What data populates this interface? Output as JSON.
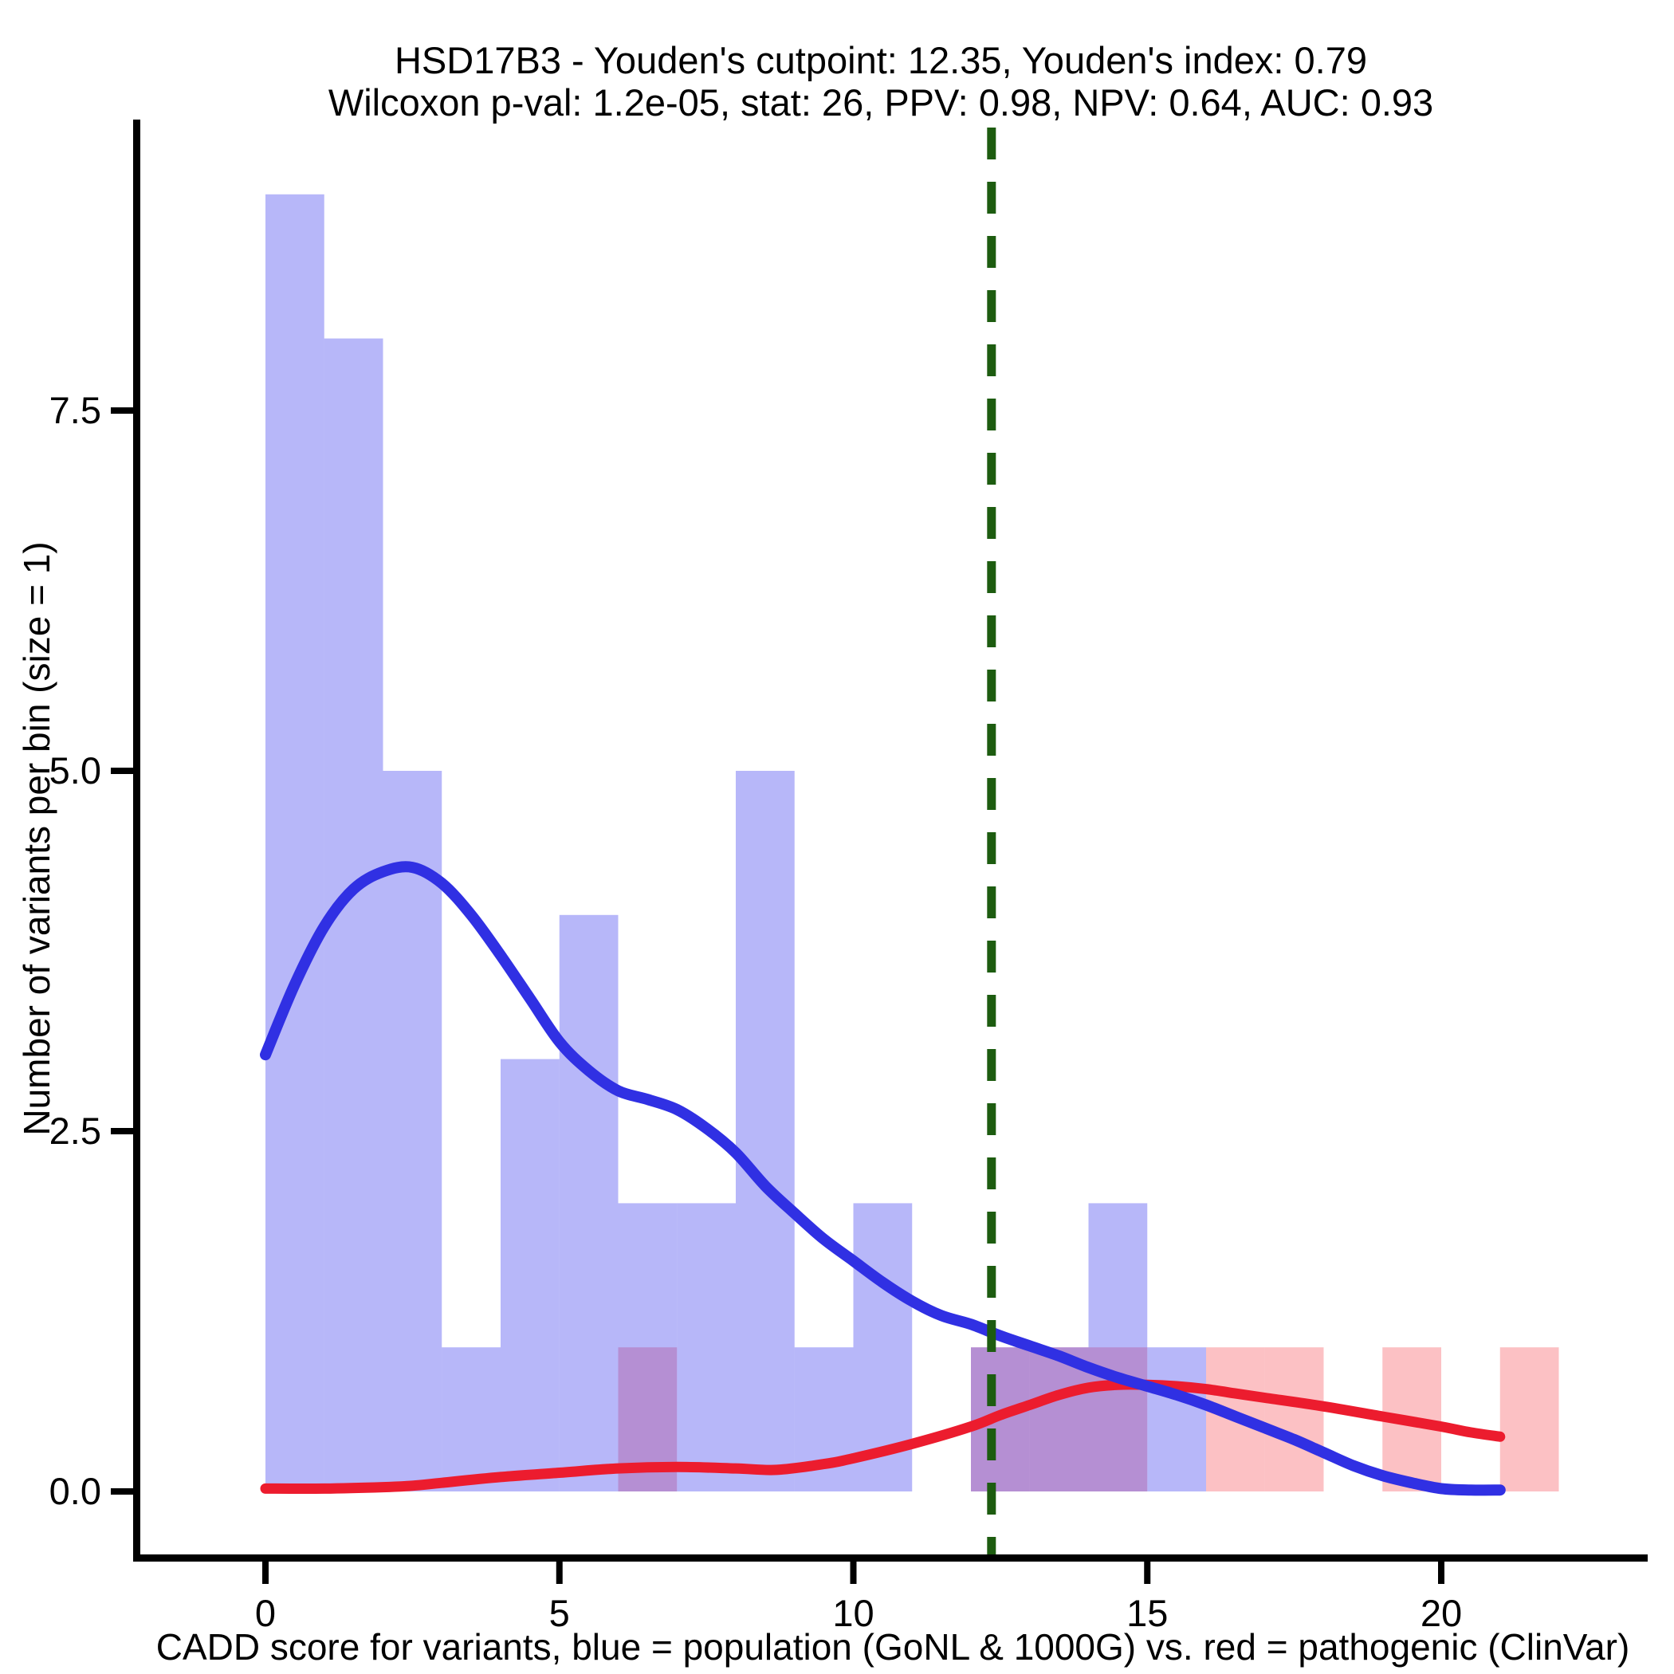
{
  "title": {
    "line1": "HSD17B3 - Youden's cutpoint: 12.35, Youden's index: 0.79",
    "line2": "Wilcoxon p-val: 1.2e-05, stat: 26, PPV: 0.98, NPV: 0.64, AUC: 0.93"
  },
  "chart_data": {
    "type": "bar",
    "subtype": "overlaid-histograms-with-density",
    "title": "HSD17B3 - Youden's cutpoint: 12.35, Youden's index: 0.79",
    "subtitle": "Wilcoxon p-val: 1.2e-05, stat: 26, PPV: 0.98, NPV: 0.64, AUC: 0.93",
    "xlabel": "CADD score for variants, blue = population (GoNL & 1000G) vs. red = pathogenic (ClinVar)",
    "ylabel": "Number of variants per bin (size = 1)",
    "x_ticks": [
      0,
      5,
      10,
      15,
      20
    ],
    "y_ticks": [
      "0.0",
      "2.5",
      "5.0",
      "7.5"
    ],
    "xlim": [
      -2.1,
      23.5
    ],
    "ylim": [
      0,
      9.5
    ],
    "bin_width": 1,
    "grid": false,
    "legend_position": "none",
    "series": [
      {
        "name": "population (GoNL & 1000G)",
        "role": "histogram",
        "color": "#3737ee",
        "fill_opacity": 0.36,
        "bins": [
          [
            0,
            9
          ],
          [
            1,
            8
          ],
          [
            2,
            5
          ],
          [
            3,
            1
          ],
          [
            4,
            3
          ],
          [
            5,
            4
          ],
          [
            6,
            2
          ],
          [
            7,
            2
          ],
          [
            8,
            5
          ],
          [
            9,
            1
          ],
          [
            10,
            2
          ],
          [
            12,
            1
          ],
          [
            13,
            1
          ],
          [
            14,
            2
          ],
          [
            15,
            1
          ]
        ]
      },
      {
        "name": "pathogenic (ClinVar)",
        "role": "histogram",
        "color": "#f4323c",
        "fill_opacity": 0.3,
        "bins": [
          [
            6,
            1
          ],
          [
            12,
            1
          ],
          [
            13,
            1
          ],
          [
            14,
            1
          ],
          [
            16,
            1
          ],
          [
            17,
            1
          ],
          [
            19,
            1
          ],
          [
            21,
            1
          ]
        ]
      },
      {
        "name": "population density",
        "role": "density-line",
        "color": "#3030e3",
        "points": [
          [
            0,
            3.03
          ],
          [
            0.5,
            3.52
          ],
          [
            1,
            3.92
          ],
          [
            1.5,
            4.18
          ],
          [
            2,
            4.3
          ],
          [
            2.5,
            4.33
          ],
          [
            3,
            4.22
          ],
          [
            3.5,
            4.0
          ],
          [
            4,
            3.72
          ],
          [
            4.5,
            3.42
          ],
          [
            5,
            3.12
          ],
          [
            5.5,
            2.92
          ],
          [
            6,
            2.78
          ],
          [
            6.5,
            2.72
          ],
          [
            7,
            2.65
          ],
          [
            7.5,
            2.52
          ],
          [
            8,
            2.35
          ],
          [
            8.5,
            2.12
          ],
          [
            9,
            1.93
          ],
          [
            9.5,
            1.75
          ],
          [
            10,
            1.6
          ],
          [
            10.5,
            1.45
          ],
          [
            11,
            1.32
          ],
          [
            11.5,
            1.22
          ],
          [
            12,
            1.16
          ],
          [
            12.5,
            1.08
          ],
          [
            13,
            1.01
          ],
          [
            13.5,
            0.94
          ],
          [
            14,
            0.86
          ],
          [
            14.5,
            0.79
          ],
          [
            15,
            0.73
          ],
          [
            15.5,
            0.67
          ],
          [
            16,
            0.6
          ],
          [
            16.5,
            0.52
          ],
          [
            17,
            0.44
          ],
          [
            17.5,
            0.36
          ],
          [
            18,
            0.27
          ],
          [
            18.5,
            0.18
          ],
          [
            19,
            0.11
          ],
          [
            19.5,
            0.06
          ],
          [
            20,
            0.02
          ],
          [
            20.5,
            0.01
          ],
          [
            21,
            0.01
          ]
        ]
      },
      {
        "name": "pathogenic density",
        "role": "density-line",
        "color": "#ec1c2e",
        "points": [
          [
            0,
            0.02
          ],
          [
            1,
            0.02
          ],
          [
            2,
            0.03
          ],
          [
            2.5,
            0.04
          ],
          [
            3,
            0.06
          ],
          [
            4,
            0.1
          ],
          [
            5,
            0.13
          ],
          [
            6,
            0.16
          ],
          [
            7,
            0.17
          ],
          [
            8,
            0.16
          ],
          [
            8.7,
            0.15
          ],
          [
            9.5,
            0.19
          ],
          [
            10,
            0.23
          ],
          [
            11,
            0.33
          ],
          [
            12,
            0.45
          ],
          [
            12.5,
            0.53
          ],
          [
            13,
            0.6
          ],
          [
            13.5,
            0.67
          ],
          [
            14,
            0.72
          ],
          [
            14.5,
            0.74
          ],
          [
            15,
            0.74
          ],
          [
            15.5,
            0.73
          ],
          [
            16,
            0.71
          ],
          [
            16.5,
            0.68
          ],
          [
            17,
            0.65
          ],
          [
            18,
            0.59
          ],
          [
            19,
            0.52
          ],
          [
            20,
            0.45
          ],
          [
            20.5,
            0.41
          ],
          [
            21,
            0.38
          ]
        ]
      }
    ],
    "cutpoint_line": {
      "x": 12.35,
      "color": "#1d5c10",
      "style": "dashed"
    },
    "colors": {
      "blue_bar_on_white": "#b7b7f9",
      "red_bar_on_white": "#fbc2c4",
      "overlap_purple": "#b590d3",
      "axis": "#000000"
    }
  }
}
